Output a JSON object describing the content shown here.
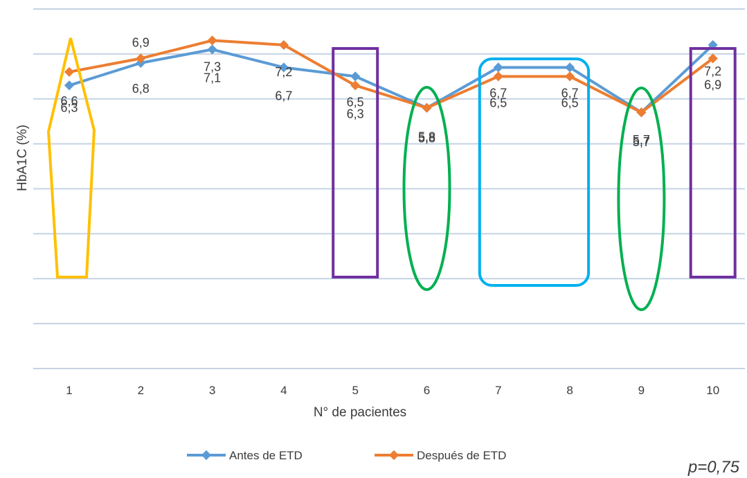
{
  "chart_data": {
    "type": "line",
    "title": "",
    "xlabel": "N° de pacientes",
    "ylabel": "HbA1C (%)",
    "categories": [
      "1",
      "2",
      "3",
      "4",
      "5",
      "6",
      "7",
      "8",
      "9",
      "10"
    ],
    "ylim": [
      0,
      8
    ],
    "grid": true,
    "legend_placement": "bottom",
    "series": [
      {
        "name": "Antes de ETD",
        "color": "#5b9bd5",
        "values": [
          6.3,
          6.8,
          7.1,
          6.7,
          6.5,
          5.8,
          6.7,
          6.7,
          5.7,
          7.2
        ],
        "labels": [
          "6,3",
          "6,8",
          "7,1",
          "6,7",
          "6,5",
          "5,8",
          "6,7",
          "6,7",
          "5,7",
          "7,2"
        ]
      },
      {
        "name": "Después de ETD",
        "color": "#ed7d31",
        "values": [
          6.6,
          6.9,
          7.3,
          7.2,
          6.3,
          5.8,
          6.5,
          6.5,
          5.7,
          6.9
        ],
        "labels": [
          "6,6",
          "6,9",
          "7,3",
          "7,2",
          "6,3",
          "5,8",
          "6,5",
          "6,5",
          "5,7",
          "6,9"
        ]
      }
    ],
    "annotations": {
      "p_value": "p=0,75",
      "highlights": [
        {
          "points": [
            "1"
          ],
          "shape": "hexagon",
          "color": "#ffc000"
        },
        {
          "points": [
            "5"
          ],
          "shape": "rectangle",
          "color": "#7030a0"
        },
        {
          "points": [
            "6"
          ],
          "shape": "ellipse",
          "color": "#00b050"
        },
        {
          "points": [
            "7",
            "8"
          ],
          "shape": "rounded-rectangle",
          "color": "#00b0f0"
        },
        {
          "points": [
            "9"
          ],
          "shape": "ellipse",
          "color": "#00b050"
        },
        {
          "points": [
            "10"
          ],
          "shape": "rectangle",
          "color": "#7030a0"
        }
      ]
    }
  }
}
